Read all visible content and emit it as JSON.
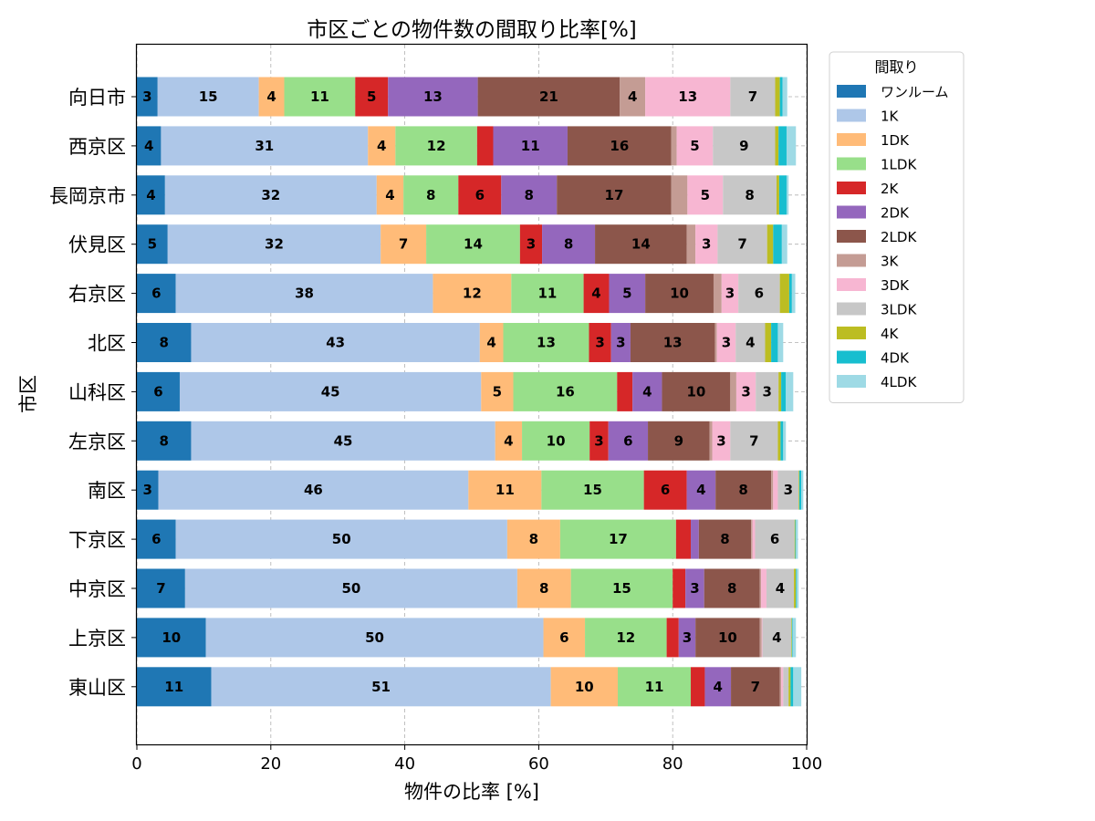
{
  "chart_data": {
    "type": "bar",
    "orientation": "horizontal",
    "stacked": true,
    "title": "市区ごとの物件数の間取り比率[%]",
    "xlabel": "物件の比率 [%]",
    "ylabel": "市区",
    "xlim": [
      0,
      100
    ],
    "xticks": [
      0,
      20,
      40,
      60,
      80,
      100
    ],
    "grid": true,
    "legend_title": "間取り",
    "legend_position": "outside-top-right",
    "categories": [
      "向日市",
      "西京区",
      "長岡京市",
      "伏見区",
      "右京区",
      "北区",
      "山科区",
      "左京区",
      "南区",
      "下京区",
      "中京区",
      "上京区",
      "東山区"
    ],
    "series": [
      {
        "name": "ワンルーム",
        "color": "#1f77b4",
        "values": [
          3.1,
          3.6,
          4.2,
          4.6,
          5.8,
          8.1,
          6.4,
          8.1,
          3.2,
          5.8,
          7.2,
          10.3,
          11.1
        ]
      },
      {
        "name": "1K",
        "color": "#aec7e8",
        "values": [
          15.1,
          30.9,
          31.6,
          31.8,
          38.4,
          43.1,
          45.0,
          45.4,
          46.3,
          49.5,
          49.6,
          50.4,
          50.7
        ]
      },
      {
        "name": "1DK",
        "color": "#ffbb78",
        "values": [
          3.8,
          4.1,
          4.0,
          6.8,
          11.7,
          3.5,
          4.8,
          4.0,
          10.9,
          7.9,
          8.0,
          6.2,
          10.0
        ]
      },
      {
        "name": "1LDK",
        "color": "#98df8a",
        "values": [
          10.6,
          12.2,
          8.2,
          14.0,
          10.8,
          12.8,
          15.5,
          10.1,
          15.3,
          17.3,
          15.2,
          12.2,
          10.9
        ]
      },
      {
        "name": "2K",
        "color": "#d62728",
        "values": [
          4.9,
          2.4,
          6.4,
          3.3,
          3.8,
          3.3,
          2.3,
          2.8,
          6.4,
          2.2,
          1.9,
          1.8,
          2.1
        ]
      },
      {
        "name": "2DK",
        "color": "#9467bd",
        "values": [
          13.4,
          11.1,
          8.3,
          7.9,
          5.4,
          2.9,
          4.4,
          5.9,
          4.3,
          1.2,
          2.8,
          2.5,
          3.9
        ]
      },
      {
        "name": "2LDK",
        "color": "#8c564b",
        "values": [
          21.2,
          15.5,
          17.1,
          13.7,
          10.2,
          12.6,
          10.2,
          9.2,
          8.3,
          7.8,
          8.3,
          9.6,
          7.3
        ]
      },
      {
        "name": "3K",
        "color": "#c49c94",
        "values": [
          3.8,
          0.8,
          2.4,
          1.3,
          1.2,
          0.3,
          0.9,
          0.4,
          0.3,
          0.2,
          0.2,
          0.3,
          0.2
        ]
      },
      {
        "name": "3DK",
        "color": "#f7b6d2",
        "values": [
          12.7,
          5.4,
          5.3,
          3.3,
          2.5,
          2.8,
          2.9,
          2.7,
          0.7,
          0.4,
          0.8,
          0.1,
          0.3
        ]
      },
      {
        "name": "3LDK",
        "color": "#c7c7c7",
        "values": [
          6.7,
          9.3,
          8.0,
          7.4,
          6.2,
          4.4,
          3.4,
          7.1,
          3.1,
          5.9,
          4.1,
          4.3,
          0.8
        ]
      },
      {
        "name": "4K",
        "color": "#bcbd22",
        "values": [
          0.7,
          0.5,
          0.4,
          0.9,
          1.4,
          0.9,
          0.4,
          0.4,
          0.1,
          0.1,
          0.3,
          0.1,
          0.3
        ]
      },
      {
        "name": "4DK",
        "color": "#17becf",
        "values": [
          0.4,
          1.2,
          1.1,
          1.3,
          0.4,
          1.0,
          0.7,
          0.4,
          0.3,
          0.1,
          0.1,
          0.1,
          0.4
        ]
      },
      {
        "name": "4LDK",
        "color": "#9edae5",
        "values": [
          0.7,
          1.4,
          0.3,
          0.8,
          0.5,
          0.8,
          1.1,
          0.4,
          0.3,
          0.3,
          0.3,
          0.5,
          1.2
        ]
      }
    ]
  }
}
